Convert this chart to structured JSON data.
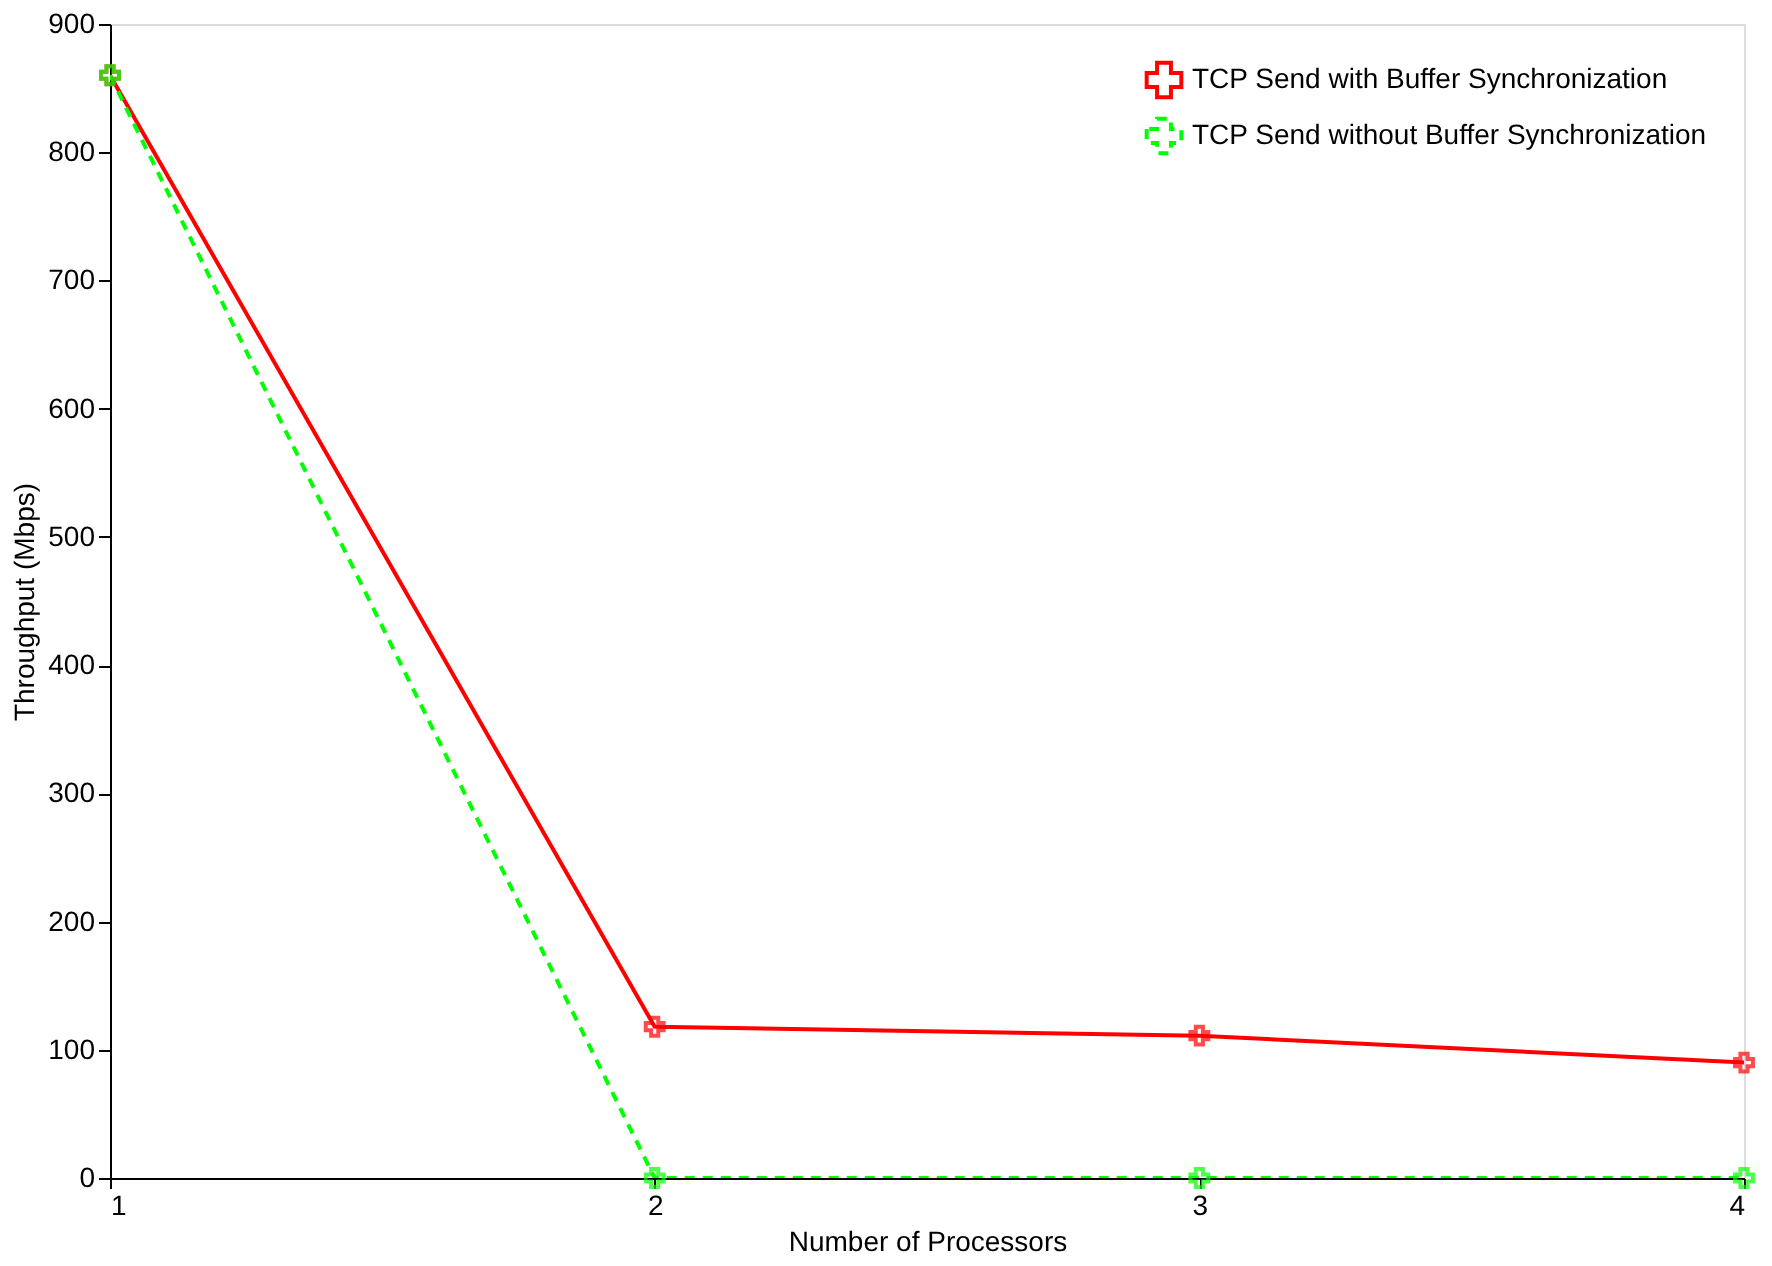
{
  "chart_data": {
    "type": "line",
    "xlabel": "Number of Processors",
    "ylabel": "Throughput (Mbps)",
    "x": [
      1,
      2,
      3,
      4
    ],
    "xlim": [
      1,
      4
    ],
    "xticks": [
      1,
      2,
      3,
      4
    ],
    "ylim": [
      0,
      900
    ],
    "yticks": [
      0,
      100,
      200,
      300,
      400,
      500,
      600,
      700,
      800,
      900
    ],
    "grid": false,
    "legend": "top right",
    "series": [
      {
        "name": "TCP Send with Buffer Synchronization",
        "color": "#ff0000",
        "values": [
          860,
          118,
          111,
          90
        ],
        "marker": "cross",
        "line_style": "solid"
      },
      {
        "name": "TCP Send without Buffer Synchronization",
        "color": "#00ff00",
        "values": [
          860,
          0,
          0,
          0
        ],
        "marker": "cross",
        "line_style": "dashed"
      }
    ]
  }
}
